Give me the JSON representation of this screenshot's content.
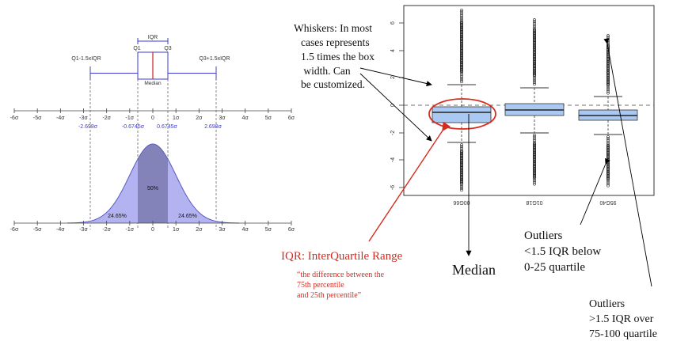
{
  "left_diagram": {
    "labels": {
      "iqr": "IQR",
      "q1": "Q1",
      "q3": "Q3",
      "median": "Median",
      "lower_fence": "Q1-1.5xIQR",
      "upper_fence": "Q3+1.5xIQR"
    },
    "sigma_ticks": [
      "-6σ",
      "-5σ",
      "-4σ",
      "-3σ",
      "-2σ",
      "-1σ",
      "0",
      "1σ",
      "2σ",
      "3σ",
      "4σ",
      "5σ",
      "6σ"
    ],
    "boundary_values": {
      "lower_whisker": "-2.698σ",
      "q1": "-0.6745σ",
      "q3": "0.6745σ",
      "upper_whisker": "2.698σ"
    },
    "area_labels": {
      "center": "50%",
      "left": "24.65%",
      "right": "24.65%"
    },
    "colors": {
      "axis_blue": "#3b3bd6",
      "curve_fill": "#b3b3f2",
      "center_fill": "#7a7ab0",
      "median_red": "#cc2222"
    }
  },
  "boxplot": {
    "y_ticks": [
      "6",
      "4",
      "2",
      "0",
      "-2",
      "-4",
      "-6"
    ],
    "x_labels": [
      "00G66",
      "01G18",
      "95G40"
    ],
    "colors": {
      "box_fill": "#a9c9f3",
      "highlight_circle": "#d62b1e"
    }
  },
  "annotations": {
    "whiskers": [
      "Whiskers: In most",
      "cases represents",
      "1.5 times the box",
      " width. Can",
      "be customized."
    ],
    "iqr_title": "IQR: InterQuartile Range",
    "iqr_quote": [
      "“the difference between the",
      "75th percentile",
      "and 25th percentile”"
    ],
    "median": "Median",
    "outliers_low": [
      "Outliers",
      "<1.5 IQR below",
      "0-25 quartile"
    ],
    "outliers_high": [
      "Outliers",
      ">1.5 IQR over",
      "75-100 quartile"
    ],
    "colors": {
      "iqr_red": "#d62b1e"
    }
  }
}
